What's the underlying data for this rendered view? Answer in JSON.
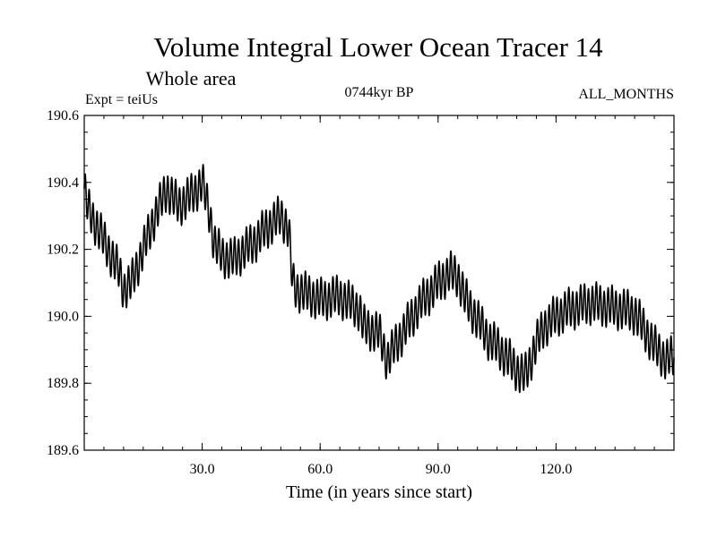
{
  "chart_data": {
    "type": "line",
    "title": "Volume Integral Lower Ocean Tracer 14",
    "subtitle": "Whole area",
    "left_label": "Expt = teiUs",
    "center_label": "0744kyr BP",
    "right_label": "ALL_MONTHS",
    "xlabel": "Time (in years since start)",
    "ylabel": "",
    "xlim": [
      0,
      150
    ],
    "ylim": [
      189.6,
      190.6
    ],
    "x_ticks": [
      30,
      60,
      90,
      120
    ],
    "x_tick_labels": [
      "30.0",
      "60.0",
      "90.0",
      "120.0"
    ],
    "y_ticks": [
      189.6,
      189.8,
      190.0,
      190.2,
      190.4,
      190.6
    ],
    "y_tick_labels": [
      "189.6",
      "189.8",
      "190.0",
      "190.2",
      "190.4",
      "190.6"
    ],
    "grid": false,
    "series": [
      {
        "name": "Lower Ocean Tracer 14",
        "color": "#000000",
        "oscillation_amplitude": 0.055,
        "oscillation_period_years": 1,
        "trend_x": [
          0,
          1,
          4,
          9,
          10,
          12,
          15,
          18,
          21,
          24,
          28,
          30,
          32,
          33,
          35,
          38,
          40,
          42,
          44,
          46,
          48,
          50,
          52,
          53,
          54,
          56,
          60,
          65,
          70,
          71,
          75,
          77,
          80,
          85,
          90,
          93,
          95,
          97,
          100,
          103,
          105,
          108,
          110,
          112,
          113,
          115,
          117,
          120,
          123,
          126,
          129,
          133,
          137,
          140,
          142,
          145,
          148,
          150
        ],
        "trend_y": [
          190.38,
          190.32,
          190.25,
          190.13,
          190.08,
          190.1,
          190.2,
          190.3,
          190.38,
          190.33,
          190.37,
          190.4,
          190.3,
          190.22,
          190.18,
          190.17,
          190.19,
          190.21,
          190.23,
          190.26,
          190.28,
          190.3,
          190.26,
          190.1,
          190.08,
          190.07,
          190.05,
          190.06,
          190.02,
          189.97,
          189.95,
          189.87,
          189.93,
          190.03,
          190.1,
          190.13,
          190.12,
          190.05,
          189.99,
          189.93,
          189.91,
          189.87,
          189.84,
          189.82,
          189.85,
          189.92,
          189.97,
          190.0,
          190.02,
          190.03,
          190.04,
          190.03,
          190.02,
          190.01,
          189.97,
          189.91,
          189.87,
          189.88
        ]
      }
    ]
  }
}
